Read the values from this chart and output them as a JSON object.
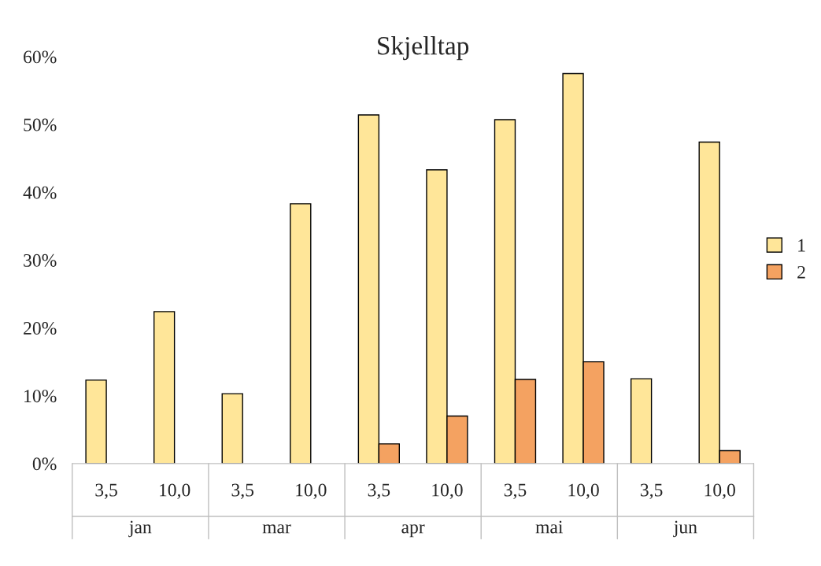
{
  "chart_data": {
    "type": "bar",
    "title": "Skjelltap",
    "categories": [
      "3,5",
      "10,0",
      "3,5",
      "10,0",
      "3,5",
      "10,0",
      "3,5",
      "10,0",
      "3,5",
      "10,0"
    ],
    "annotations": [
      "jan",
      "mar",
      "apr",
      "mai",
      "jun"
    ],
    "series": [
      {
        "name": "1",
        "color": "#ffe699",
        "values": [
          12.3,
          22.4,
          10.3,
          38.3,
          51.4,
          43.3,
          50.7,
          57.5,
          12.5,
          47.4
        ]
      },
      {
        "name": "2",
        "color": "#f4a261",
        "values": [
          null,
          null,
          null,
          null,
          2.9,
          7.0,
          12.4,
          15.0,
          null,
          1.9
        ]
      }
    ],
    "ylim": [
      0,
      60
    ],
    "yticks": [
      {
        "value": 0,
        "label": "0%"
      },
      {
        "value": 10,
        "label": "10%"
      },
      {
        "value": 20,
        "label": "20%"
      },
      {
        "value": 30,
        "label": "30%"
      },
      {
        "value": 40,
        "label": "40%"
      },
      {
        "value": 50,
        "label": "50%"
      },
      {
        "value": 60,
        "label": "60%"
      }
    ],
    "grid": false,
    "legend": "right"
  }
}
